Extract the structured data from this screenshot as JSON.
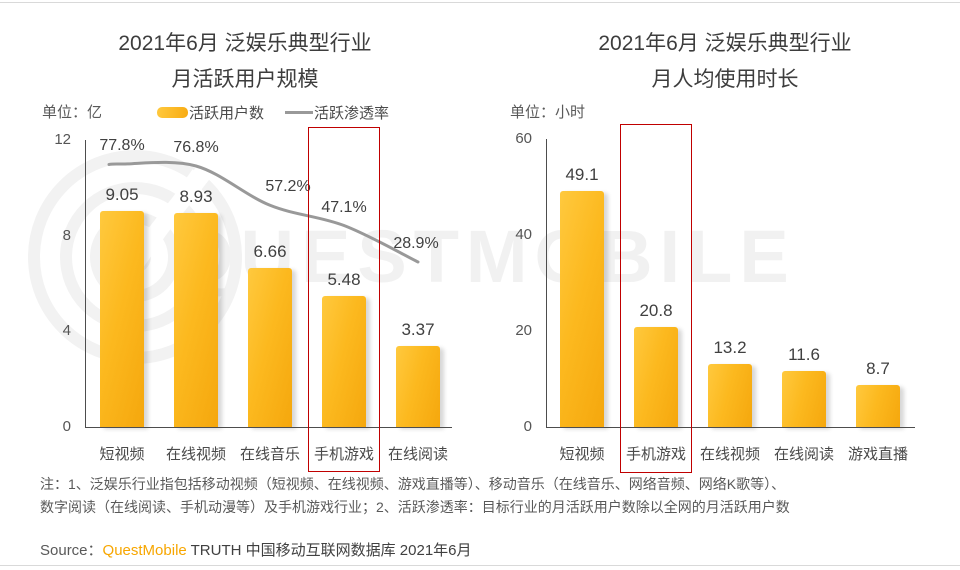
{
  "watermark": {
    "text": "QUESTMOBILE",
    "logo": "questmobile-rings-logo"
  },
  "colors": {
    "bar_gradient_light": "#ffc93e",
    "bar_gradient_dark": "#f5a70d",
    "penetration_line": "#999999",
    "highlight_box": "#c00000",
    "brand_orange": "#f7a600",
    "text_dark": "#404040",
    "text_gray": "#595959"
  },
  "chart_data": [
    {
      "type": "bar+line",
      "title_line1": "2021年6月 泛娱乐典型行业",
      "title_line2": "月活跃用户规模",
      "unit_label": "单位：亿",
      "legend": [
        {
          "label": "活跃用户数",
          "swatch": "bar"
        },
        {
          "label": "活跃渗透率",
          "swatch": "line"
        }
      ],
      "categories": [
        "短视频",
        "在线视频",
        "在线音乐",
        "手机游戏",
        "在线阅读"
      ],
      "series": [
        {
          "name": "活跃用户数",
          "type": "bar",
          "values": [
            9.05,
            8.93,
            6.66,
            5.48,
            3.37
          ]
        },
        {
          "name": "活跃渗透率",
          "type": "line",
          "values_pct": [
            77.8,
            76.8,
            57.2,
            47.1,
            28.9
          ],
          "labels": [
            "77.8%",
            "76.8%",
            "57.2%",
            "47.1%",
            "28.9%"
          ]
        }
      ],
      "y_ticks": [
        0,
        4,
        8,
        12
      ],
      "ylim": [
        0,
        12
      ],
      "grid": false,
      "legend_position": "top",
      "highlight_category": "手机游戏"
    },
    {
      "type": "bar",
      "title_line1": "2021年6月 泛娱乐典型行业",
      "title_line2": "月人均使用时长",
      "unit_label": "单位：小时",
      "categories": [
        "短视频",
        "手机游戏",
        "在线视频",
        "在线阅读",
        "游戏直播"
      ],
      "series": [
        {
          "name": "月人均使用时长",
          "type": "bar",
          "values": [
            49.1,
            20.8,
            13.2,
            11.6,
            8.7
          ]
        }
      ],
      "y_ticks": [
        0,
        20,
        40,
        60
      ],
      "ylim": [
        0,
        60
      ],
      "grid": false,
      "highlight_category": "手机游戏"
    }
  ],
  "footer": {
    "note_line1": "注：1、泛娱乐行业指包括移动视频（短视频、在线视频、游戏直播等）、移动音乐（在线音乐、网络音频、网络K歌等）、",
    "note_line2": "数字阅读（在线阅读、手机动漫等）及手机游戏行业；2、活跃渗透率：目标行业的月活跃用户数除以全网的月活跃用户数",
    "source_prefix": "Source：",
    "source_brand": "QuestMobile",
    "source_suffix": " TRUTH 中国移动互联网数据库 2021年6月"
  }
}
